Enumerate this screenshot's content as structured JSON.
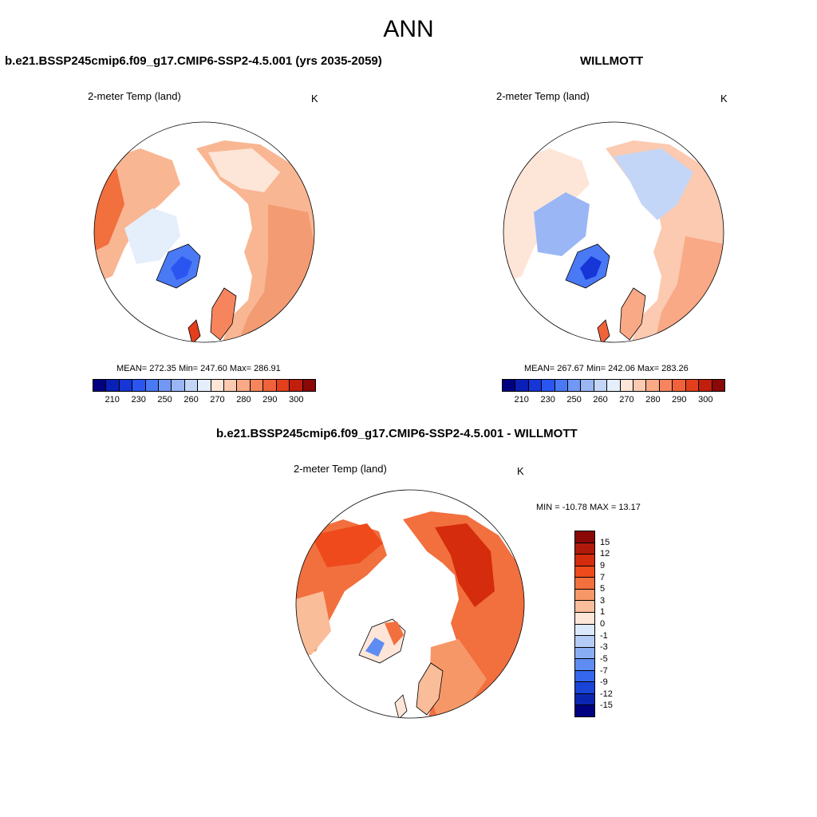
{
  "title": "ANN",
  "panels": [
    {
      "title": "b.e21.BSSP245cmip6.f09_g17.CMIP6-SSP2-4.5.001 (yrs 2035-2059)",
      "variable": "2-meter Temp (land)",
      "units": "K",
      "stats": "MEAN= 272.35  Min= 247.60  Max= 286.91"
    },
    {
      "title": "WILLMOTT",
      "variable": "2-meter Temp (land)",
      "units": "K",
      "stats": "MEAN= 267.67  Min= 242.06  Max= 283.26"
    }
  ],
  "abs_colorbar": {
    "colors": [
      "#000080",
      "#0a1fb5",
      "#1636d8",
      "#2a55f0",
      "#4a79f5",
      "#7298f5",
      "#9ab6f5",
      "#c4d6f7",
      "#e5eefb",
      "#fde6d8",
      "#fbcab0",
      "#f9a985",
      "#f6855e",
      "#f0623a",
      "#e33f1c",
      "#c11e0c",
      "#8a0808"
    ],
    "ticks": [
      "210",
      "230",
      "250",
      "260",
      "270",
      "280",
      "290",
      "300"
    ]
  },
  "diff_panel": {
    "title": "b.e21.BSSP245cmip6.f09_g17.CMIP6-SSP2-4.5.001 - WILLMOTT",
    "variable": "2-meter Temp (land)",
    "units": "K",
    "stats": "MIN = -10.78 MAX =  13.17"
  },
  "diff_colorbar": {
    "colors": [
      "#8a0808",
      "#b01a0a",
      "#d42c0c",
      "#ee4a1c",
      "#f26f3e",
      "#f69768",
      "#f9bd99",
      "#fde6d8",
      "#dce9fa",
      "#b4ccf6",
      "#8aaef4",
      "#5e8cf2",
      "#3466ee",
      "#1a44d8",
      "#0a26b0",
      "#000080"
    ],
    "ticks": [
      "15",
      "12",
      "9",
      "7",
      "5",
      "3",
      "1",
      "0",
      "-1",
      "-3",
      "-5",
      "-7",
      "-9",
      "-12",
      "-15"
    ]
  }
}
